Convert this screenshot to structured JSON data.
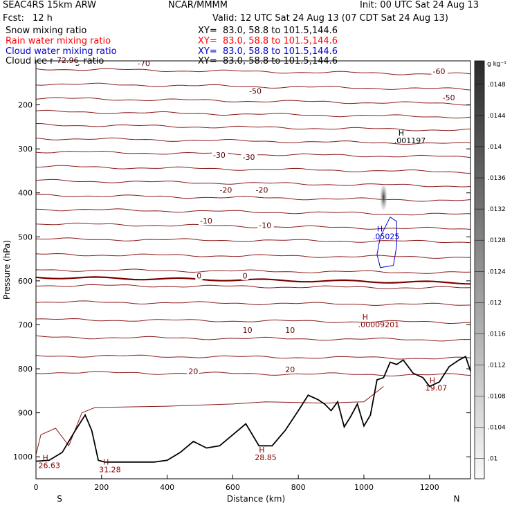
{
  "header": {
    "model": "SEAC4RS 15km ARW",
    "center": "NCAR/MMMM",
    "init": "Init: 00 UTC Sat 24 Aug 13",
    "fcst_label": "Fcst:",
    "fcst_value": "12 h",
    "valid": "Valid: 12 UTC Sat 24 Aug 13 (07 CDT Sat 24 Aug 13)"
  },
  "fields": [
    {
      "name": "Snow mixing ratio",
      "xy": "XY=  83.0, 58.8 to 101.5,144.6",
      "color": "#000000"
    },
    {
      "name": "Rain water mixing ratio",
      "xy": "XY=  83.0, 58.8 to 101.5,144.6",
      "color": "#ff0000"
    },
    {
      "name": "Cloud water mixing ratio",
      "xy": "XY=  83.0, 58.8 to 101.5,144.6",
      "color": "#0000cc"
    },
    {
      "name": "Cloud ice mixing ratio",
      "xy": "XY=  83.0, 58.8 to 101.5,144.6",
      "color": "#000000"
    }
  ],
  "chart_data": {
    "type": "cross-section contour",
    "xlabel": "Distance (km)",
    "ylabel": "Pressure (hPa)",
    "xlim": [
      0,
      1325
    ],
    "ylim": [
      1050,
      100
    ],
    "x_ticks": [
      "0",
      "200",
      "400",
      "600",
      "800",
      "1000",
      "1200"
    ],
    "y_ticks": [
      "200",
      "300",
      "400",
      "500",
      "600",
      "700",
      "800",
      "900",
      "1000"
    ],
    "x_ends": {
      "left": "S",
      "right": "N"
    },
    "temperature_contour_labels": [
      {
        "text": "-72.96",
        "x": 55,
        "p": 105
      },
      {
        "text": "-70",
        "x": 310,
        "p": 112
      },
      {
        "text": "-60",
        "x": 1210,
        "p": 130
      },
      {
        "text": "-50",
        "x": 650,
        "p": 175
      },
      {
        "text": "-50",
        "x": 1240,
        "p": 190
      },
      {
        "text": "-30",
        "x": 540,
        "p": 320
      },
      {
        "text": "-30",
        "x": 630,
        "p": 325
      },
      {
        "text": "-20",
        "x": 560,
        "p": 400
      },
      {
        "text": "-20",
        "x": 670,
        "p": 400
      },
      {
        "text": "-10",
        "x": 500,
        "p": 470
      },
      {
        "text": "-10",
        "x": 680,
        "p": 480
      },
      {
        "text": "0",
        "x": 490,
        "p": 595
      },
      {
        "text": "0",
        "x": 630,
        "p": 595
      },
      {
        "text": "10",
        "x": 630,
        "p": 718
      },
      {
        "text": "10",
        "x": 760,
        "p": 718
      },
      {
        "text": "20",
        "x": 465,
        "p": 812
      },
      {
        "text": "20",
        "x": 760,
        "p": 808
      }
    ],
    "maxima": [
      {
        "text": "H",
        "sub": ".001197",
        "x": 1105,
        "p": 270,
        "color": "#000000"
      },
      {
        "text": "H",
        "sub": ".05025",
        "x": 1040,
        "p": 488,
        "color": "#0000cc"
      },
      {
        "text": "H",
        "sub": ".00009201",
        "x": 995,
        "p": 688,
        "color": "#8b0000"
      },
      {
        "text": "H",
        "sub": "19.07",
        "x": 1200,
        "p": 832,
        "color": "#8b0000"
      },
      {
        "text": "H",
        "sub": "26.63",
        "x": 20,
        "p": 1008,
        "color": "#8b0000"
      },
      {
        "text": "H",
        "sub": "31.28",
        "x": 205,
        "p": 1018,
        "color": "#8b0000"
      },
      {
        "text": "H",
        "sub": "28.85",
        "x": 680,
        "p": 990,
        "color": "#8b0000"
      }
    ],
    "isotherm_base_pressures": [
      118,
      152,
      185,
      215,
      245,
      276,
      306,
      340,
      372,
      405,
      437,
      470,
      505,
      540,
      575,
      610,
      648,
      688,
      728,
      770,
      808
    ],
    "zero_isotherm_pressure": 592,
    "terrain": {
      "x": [
        0,
        40,
        80,
        120,
        150,
        170,
        190,
        210,
        240,
        300,
        360,
        400,
        440,
        480,
        520,
        560,
        600,
        640,
        680,
        720,
        760,
        800,
        830,
        860,
        880,
        900,
        920,
        940,
        960,
        980,
        1000,
        1020,
        1040,
        1060,
        1080,
        1100,
        1120,
        1150,
        1180,
        1200,
        1230,
        1260,
        1290,
        1310,
        1325
      ],
      "p": [
        1010,
        1008,
        990,
        940,
        905,
        940,
        1008,
        1012,
        1012,
        1012,
        1012,
        1008,
        990,
        965,
        980,
        975,
        950,
        925,
        975,
        975,
        940,
        895,
        860,
        870,
        880,
        895,
        875,
        932,
        908,
        880,
        930,
        905,
        825,
        820,
        785,
        790,
        780,
        810,
        820,
        840,
        830,
        795,
        780,
        772,
        805
      ]
    },
    "shading": {
      "label": "g kg⁻¹",
      "ticks": [
        ".0148",
        ".0144",
        ".014",
        ".0136",
        ".0132",
        ".0128",
        ".0124",
        ".012",
        ".0116",
        ".0112",
        ".0108",
        ".0104",
        ".01"
      ]
    }
  }
}
